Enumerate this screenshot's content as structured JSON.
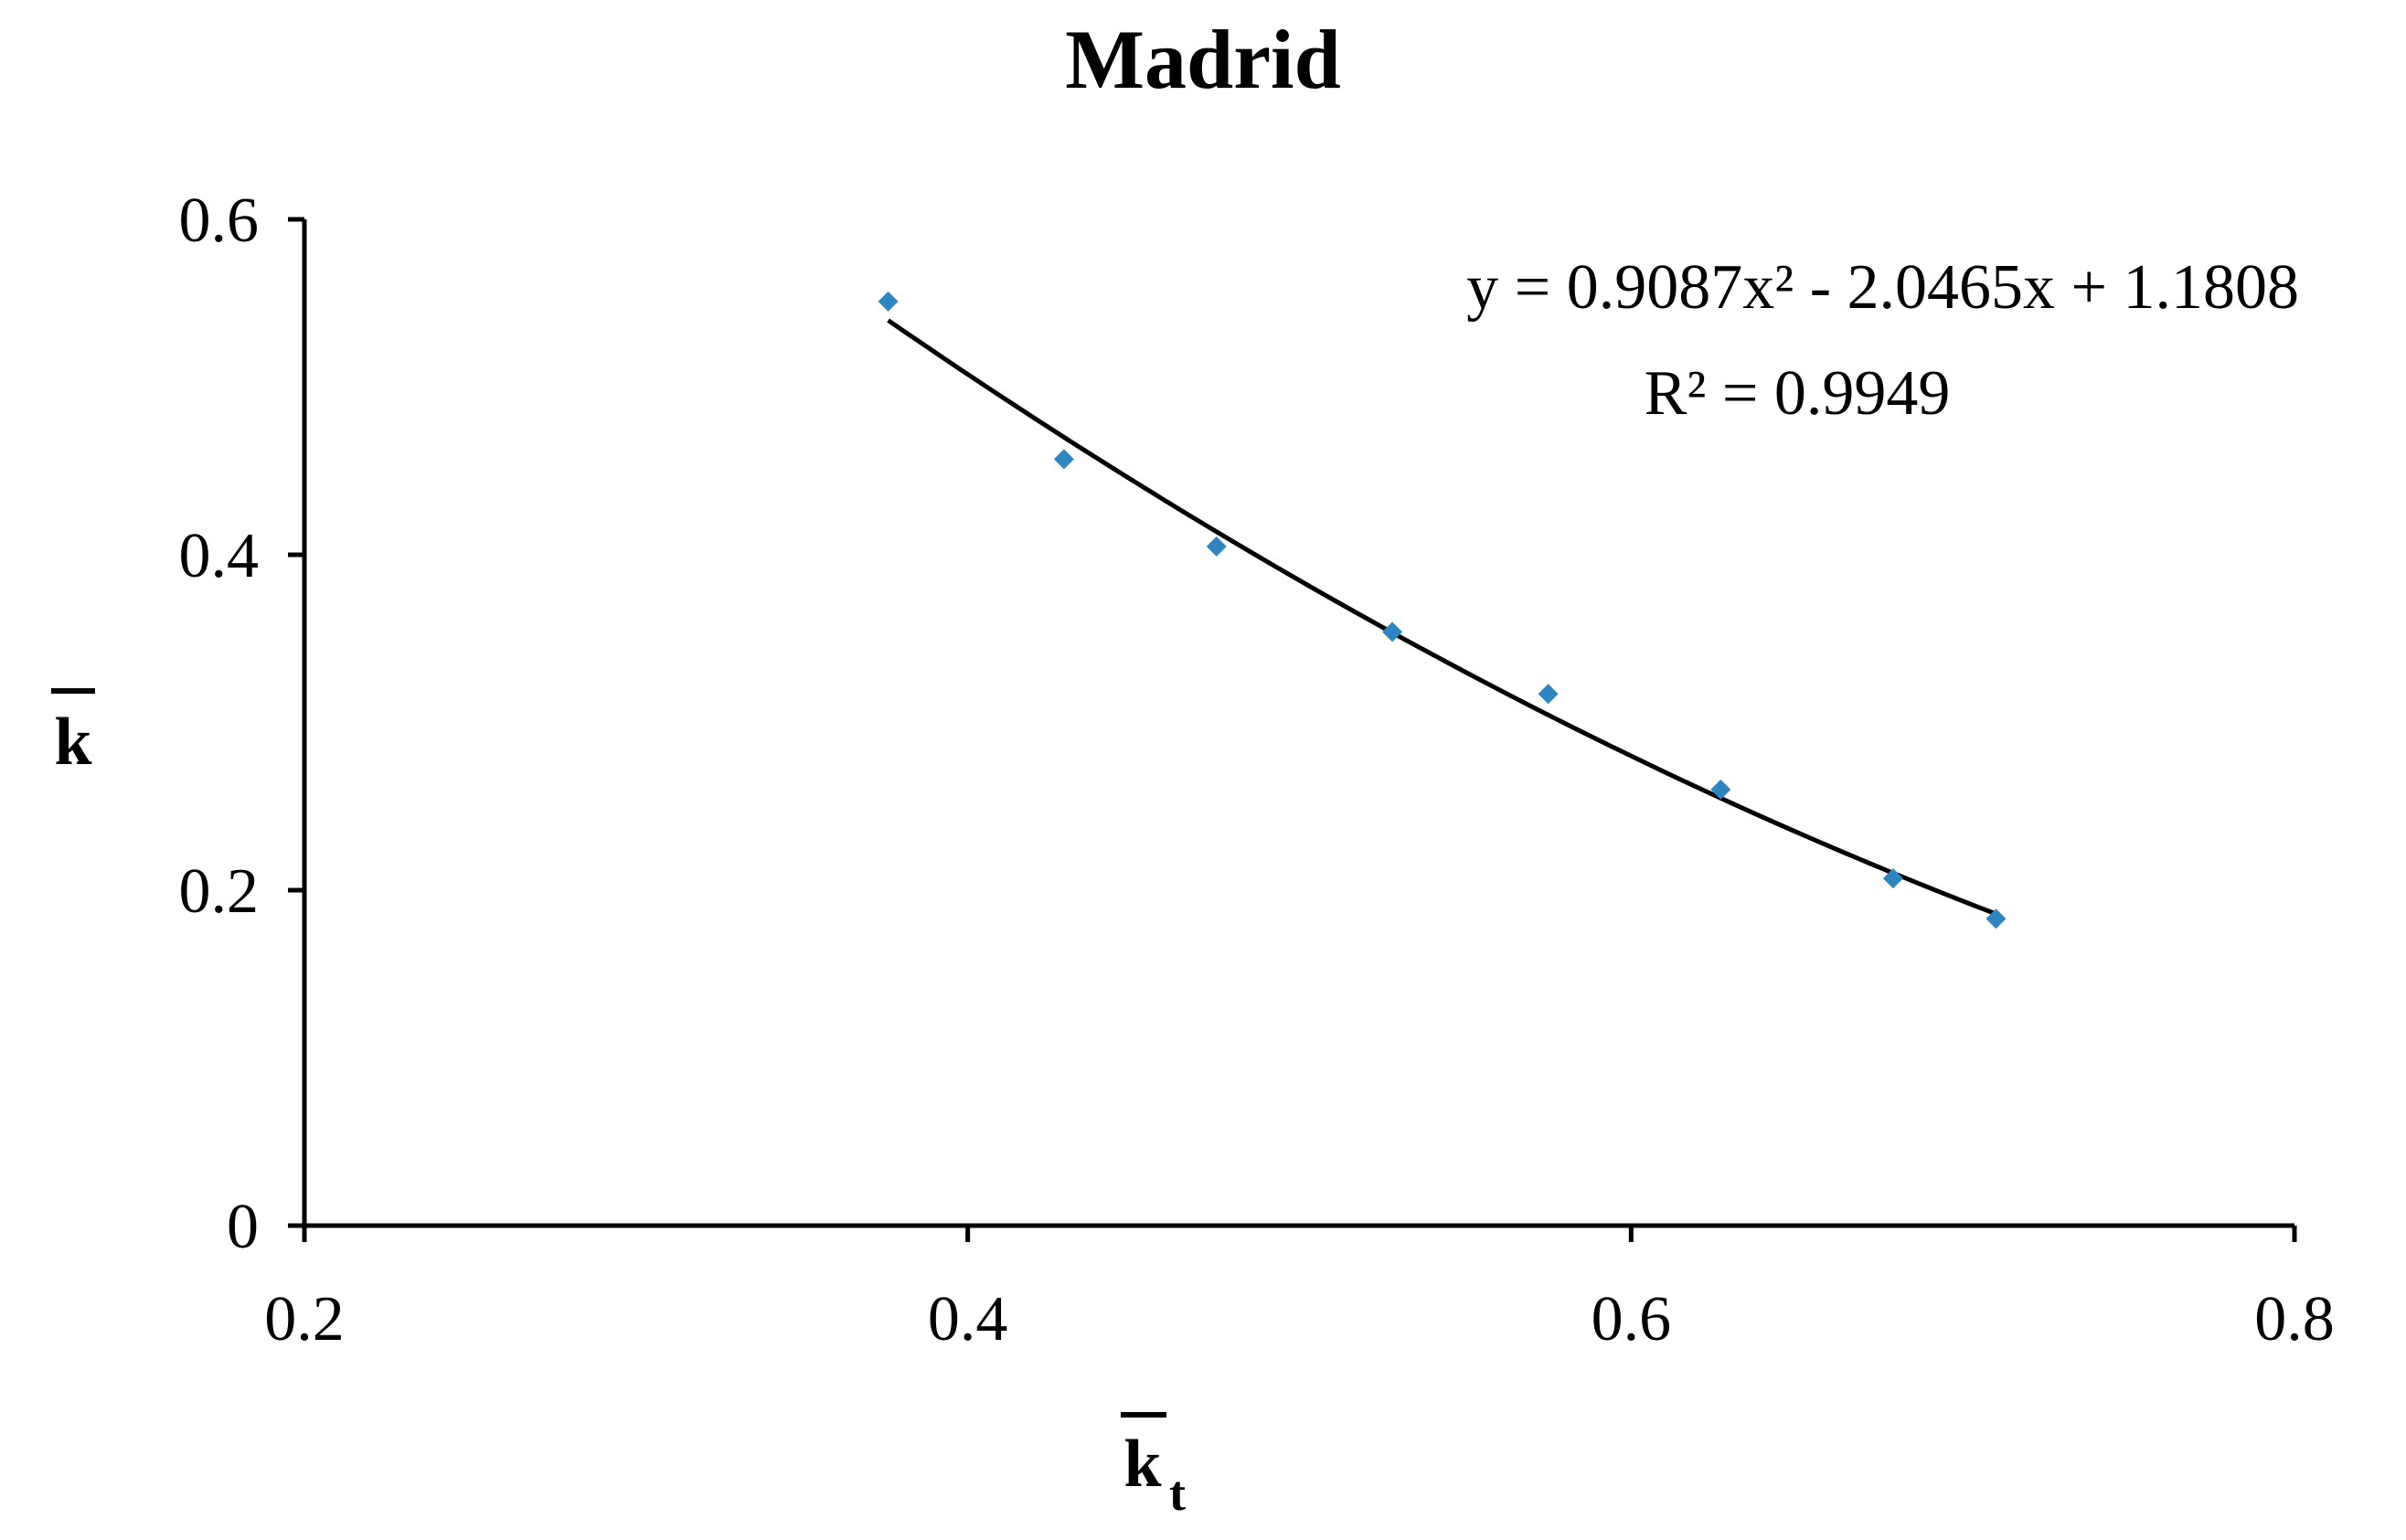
{
  "chart_data": {
    "type": "scatter",
    "title": "Madrid",
    "xlabel": "k",
    "xlabel_subscript": "t",
    "ylabel": "k",
    "xlim": [
      0.2,
      0.8
    ],
    "ylim": [
      0,
      0.6
    ],
    "xticks": [
      0.2,
      0.4,
      0.6,
      0.8
    ],
    "yticks": [
      0,
      0.2,
      0.4,
      0.6
    ],
    "xtick_labels": [
      "0.2",
      "0.4",
      "0.6",
      "0.8"
    ],
    "ytick_labels": [
      "0",
      "0.2",
      "0.4",
      "0.6"
    ],
    "grid": false,
    "marker_color": "#2E86C1",
    "line_color": "#000000",
    "series": [
      {
        "x": [
          0.376,
          0.429,
          0.475,
          0.528,
          0.575,
          0.627,
          0.679,
          0.71
        ],
        "y": [
          0.551,
          0.457,
          0.405,
          0.354,
          0.317,
          0.26,
          0.207,
          0.183
        ]
      }
    ],
    "trendline": {
      "type": "polynomial",
      "coefficients": [
        0.9087,
        -2.0465,
        1.1808
      ],
      "x_range": [
        0.376,
        0.71
      ],
      "equation": "y = 0.9087x² - 2.0465x + 1.1808",
      "r_squared": "R² = 0.9949"
    }
  }
}
